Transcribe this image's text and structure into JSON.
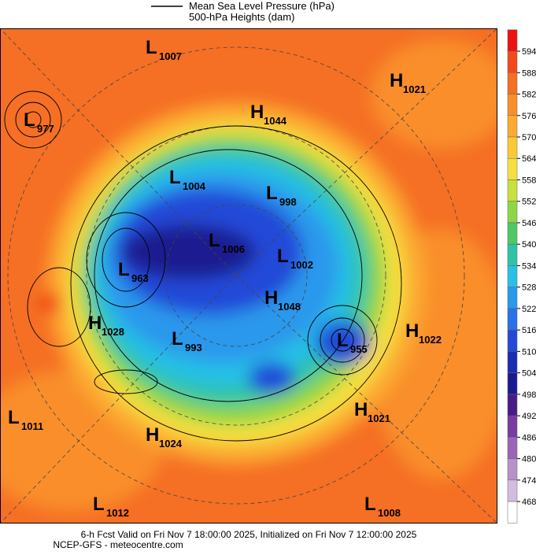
{
  "legend": {
    "line_label": "Mean Sea Level Pressure (hPa)",
    "fill_label": "500-hPa Heights (dam)"
  },
  "pressure_centers": [
    {
      "type": "L",
      "value": 1007
    },
    {
      "type": "H",
      "value": 1021
    },
    {
      "type": "L",
      "value": 977
    },
    {
      "type": "H",
      "value": 1044
    },
    {
      "type": "L",
      "value": 1004
    },
    {
      "type": "L",
      "value": 998
    },
    {
      "type": "L",
      "value": 1006
    },
    {
      "type": "L",
      "value": 963
    },
    {
      "type": "L",
      "value": 1002
    },
    {
      "type": "H",
      "value": 1048
    },
    {
      "type": "H",
      "value": 1028
    },
    {
      "type": "L",
      "value": 993
    },
    {
      "type": "L",
      "value": 955
    },
    {
      "type": "H",
      "value": 1022
    },
    {
      "type": "H",
      "value": 1021
    },
    {
      "type": "L",
      "value": 1011
    },
    {
      "type": "H",
      "value": 1024
    },
    {
      "type": "L",
      "value": 1012
    },
    {
      "type": "L",
      "value": 1008
    }
  ],
  "colorbar": {
    "ticks": [
      594,
      588,
      582,
      576,
      570,
      564,
      558,
      552,
      546,
      540,
      534,
      528,
      522,
      516,
      510,
      504,
      498,
      492,
      486,
      480,
      474,
      468
    ],
    "colors": [
      "#ee1111",
      "#f34a1c",
      "#f56f24",
      "#f98e2a",
      "#fbab30",
      "#fcc838",
      "#f6e040",
      "#c8e040",
      "#8ed645",
      "#4fc866",
      "#2ec4a8",
      "#28c0e6",
      "#2a98ec",
      "#2a70e8",
      "#2448d8",
      "#1a2cb4",
      "#1a1a90",
      "#4a1a8a",
      "#7a3aa0",
      "#9a64b8",
      "#b890cc",
      "#d4bce0",
      "#ffffff"
    ]
  },
  "footer": {
    "line1": "6-h Fcst Valid on Fri Nov  7 18:00:00 2025, Initialized on Fri Nov  7 12:00:00 2025",
    "line2": "NCEP-GFS  - meteocentre.com"
  }
}
